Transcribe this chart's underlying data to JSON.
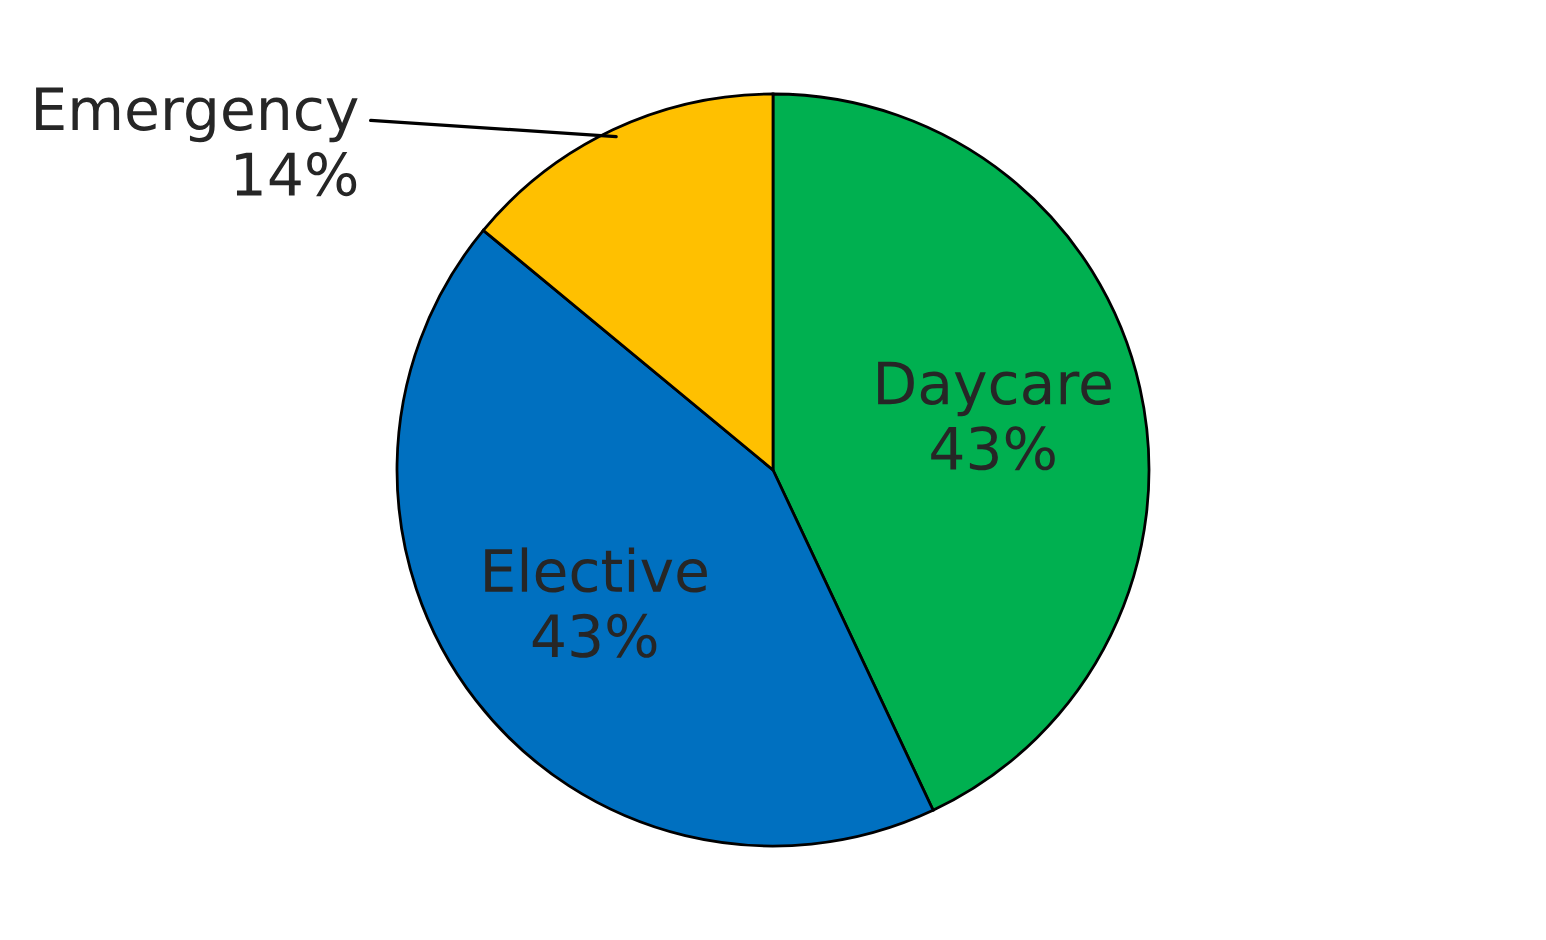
{
  "chart_data": {
    "type": "pie",
    "categories": [
      "Daycare",
      "Elective",
      "Emergency"
    ],
    "values": [
      43,
      43,
      14
    ],
    "colors": [
      "#00b050",
      "#0070c0",
      "#ffc000"
    ],
    "value_labels": [
      "43%",
      "43%",
      "14%"
    ]
  }
}
